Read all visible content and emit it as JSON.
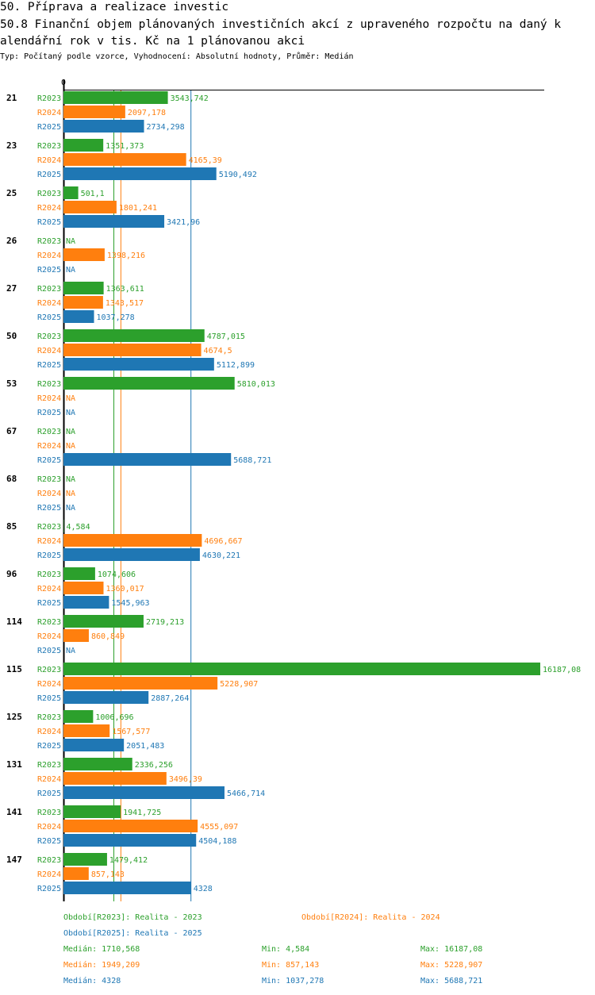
{
  "header": {
    "line1": "50. Příprava a realizace investic",
    "line2": "50.8 Finanční objem plánovaných investičních akcí z upraveného rozpočtu na daný k",
    "line3": "alendářní rok v tis. Kč na 1 plánovanou akci",
    "subtitle": "Typ: Počítaný podle vzorce, Vyhodnocení: Absolutní hodnoty, Průměr: Medián"
  },
  "colors": {
    "R2023": "#2ca02c",
    "R2024": "#ff7f0e",
    "R2025": "#1f77b4"
  },
  "chart_data": {
    "type": "bar",
    "orientation": "horizontal",
    "title": "50.8 Finanční objem plánovaných investičních akcí z upraveného rozpočtu na daný kalendářní rok v tis. Kč na 1 plánovanou akci",
    "axis_zero_label": "0",
    "xlim": [
      0,
      16187.08
    ],
    "categories": [
      "21",
      "23",
      "25",
      "26",
      "27",
      "50",
      "53",
      "67",
      "68",
      "85",
      "96",
      "114",
      "115",
      "125",
      "131",
      "141",
      "147"
    ],
    "series": [
      {
        "name": "R2023",
        "color": "#2ca02c",
        "values": [
          3543.742,
          1351.373,
          501.1,
          null,
          1363.611,
          4787.015,
          5810.013,
          null,
          null,
          4.584,
          1074.606,
          2719.213,
          16187.08,
          1006.696,
          2336.256,
          1941.725,
          1479.412
        ],
        "labels": [
          "3543,742",
          "1351,373",
          "501,1",
          "NA",
          "1363,611",
          "4787,015",
          "5810,013",
          "NA",
          "NA",
          "4,584",
          "1074,606",
          "2719,213",
          "16187,08",
          "1006,696",
          "2336,256",
          "1941,725",
          "1479,412"
        ]
      },
      {
        "name": "R2024",
        "color": "#ff7f0e",
        "values": [
          2097.178,
          4165.39,
          1801.241,
          1398.216,
          1343.517,
          4674.5,
          null,
          null,
          null,
          4696.667,
          1360.017,
          860.849,
          5228.907,
          1567.577,
          3496.39,
          4555.097,
          857.143
        ],
        "labels": [
          "2097,178",
          "4165,39",
          "1801,241",
          "1398,216",
          "1343,517",
          "4674,5",
          "NA",
          "NA",
          "NA",
          "4696,667",
          "1360,017",
          "860,849",
          "5228,907",
          "1567,577",
          "3496,39",
          "4555,097",
          "857,143"
        ]
      },
      {
        "name": "R2025",
        "color": "#1f77b4",
        "values": [
          2734.298,
          5190.492,
          3421.96,
          null,
          1037.278,
          5112.899,
          null,
          5688.721,
          null,
          4630.221,
          1545.963,
          null,
          2887.264,
          2051.483,
          5466.714,
          4504.188,
          4328
        ],
        "labels": [
          "2734,298",
          "5190,492",
          "3421,96",
          "NA",
          "1037,278",
          "5112,899",
          "NA",
          "5688,721",
          "NA",
          "4630,221",
          "1545,963",
          "NA",
          "2887,264",
          "2051,483",
          "5466,714",
          "4504,188",
          "4328"
        ]
      }
    ],
    "medians": [
      1710.568,
      1949.209,
      4328
    ]
  },
  "legend": {
    "period_2023": "Období[R2023]: Realita - 2023",
    "period_2024": "Období[R2024]: Realita - 2024",
    "period_2025": "Období[R2025]: Realita - 2025",
    "stats": [
      {
        "median": "Medián: 1710,568",
        "min": "Min: 4,584",
        "max": "Max: 16187,08"
      },
      {
        "median": "Medián: 1949,209",
        "min": "Min: 857,143",
        "max": "Max: 5228,907"
      },
      {
        "median": "Medián: 4328",
        "min": "Min: 1037,278",
        "max": "Max: 5688,721"
      }
    ]
  }
}
